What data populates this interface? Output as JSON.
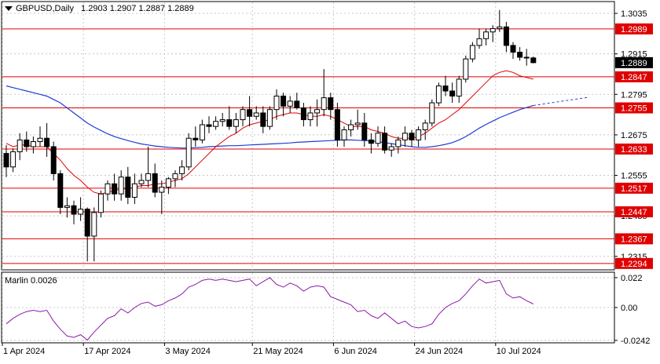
{
  "header": {
    "symbol": "GBPUSD,Daily",
    "ohlc": "1.2903 1.2907 1.2887 1.2889"
  },
  "colors": {
    "background": "#ffffff",
    "frame": "#000000",
    "grid": "#c8c8c8",
    "level_line": "#e00000",
    "level_label_bg": "#e00000",
    "price_label_bg": "#000000",
    "candle_up_body": "#ffffff",
    "candle_down_body": "#000000",
    "ma_fast": "#e00000",
    "ma_slow": "#1f3cd0",
    "oscillator": "#8a1aa6"
  },
  "chart_data": [
    {
      "type": "candlestick",
      "title": "GBPUSD,Daily",
      "price_ticks": [
        "1.3035",
        "1.2915",
        "1.2795",
        "1.2675",
        "1.2555",
        "1.2435",
        "1.2315"
      ],
      "ylim": [
        1.2275,
        1.307
      ],
      "current_price": "1.2889",
      "levels": [
        {
          "label": "1.2989",
          "value": 1.2989
        },
        {
          "label": "1.2847",
          "value": 1.2847
        },
        {
          "label": "1.2755",
          "value": 1.2755
        },
        {
          "label": "1.2633",
          "value": 1.2633
        },
        {
          "label": "1.2517",
          "value": 1.2517
        },
        {
          "label": "1.2447",
          "value": 1.2447
        },
        {
          "label": "1.2367",
          "value": 1.2367
        },
        {
          "label": "1.2294",
          "value": 1.2294
        }
      ],
      "date_ticks": [
        {
          "label": "1 Apr 2024",
          "index": 0
        },
        {
          "label": "17 Apr 2024",
          "index": 12
        },
        {
          "label": "3 May 2024",
          "index": 24
        },
        {
          "label": "21 May 2024",
          "index": 37
        },
        {
          "label": "6 Jun 2024",
          "index": 49
        },
        {
          "label": "24 Jun 2024",
          "index": 61
        },
        {
          "label": "10 Jul 2024",
          "index": 73
        }
      ],
      "ohlc": [
        [
          1.262,
          1.2645,
          1.255,
          1.258
        ],
        [
          1.258,
          1.2635,
          1.2565,
          1.2625
        ],
        [
          1.2625,
          1.268,
          1.26,
          1.266
        ],
        [
          1.266,
          1.2685,
          1.2625,
          1.264
        ],
        [
          1.264,
          1.267,
          1.262,
          1.2655
        ],
        [
          1.2655,
          1.27,
          1.264,
          1.2665
        ],
        [
          1.2665,
          1.271,
          1.261,
          1.264
        ],
        [
          1.264,
          1.2655,
          1.254,
          1.256
        ],
        [
          1.256,
          1.257,
          1.244,
          1.246
        ],
        [
          1.246,
          1.249,
          1.243,
          1.2465
        ],
        [
          1.2465,
          1.248,
          1.241,
          1.244
        ],
        [
          1.244,
          1.249,
          1.242,
          1.2455
        ],
        [
          1.2455,
          1.246,
          1.23,
          1.2375
        ],
        [
          1.2375,
          1.246,
          1.23,
          1.2445
        ],
        [
          1.2445,
          1.251,
          1.243,
          1.25
        ],
        [
          1.25,
          1.254,
          1.248,
          1.253
        ],
        [
          1.253,
          1.256,
          1.248,
          1.25
        ],
        [
          1.25,
          1.257,
          1.248,
          1.255
        ],
        [
          1.255,
          1.258,
          1.247,
          1.249
        ],
        [
          1.249,
          1.256,
          1.247,
          1.253
        ],
        [
          1.253,
          1.256,
          1.252,
          1.254
        ],
        [
          1.254,
          1.264,
          1.252,
          1.256
        ],
        [
          1.256,
          1.259,
          1.249,
          1.2505
        ],
        [
          1.2505,
          1.254,
          1.244,
          1.252
        ],
        [
          1.252,
          1.255,
          1.25,
          1.2545
        ],
        [
          1.2545,
          1.257,
          1.252,
          1.256
        ],
        [
          1.256,
          1.26,
          1.254,
          1.258
        ],
        [
          1.258,
          1.268,
          1.257,
          1.2665
        ],
        [
          1.2665,
          1.27,
          1.264,
          1.266
        ],
        [
          1.266,
          1.272,
          1.265,
          1.2705
        ],
        [
          1.2705,
          1.273,
          1.268,
          1.27
        ],
        [
          1.27,
          1.273,
          1.269,
          1.2715
        ],
        [
          1.2715,
          1.274,
          1.27,
          1.272
        ],
        [
          1.272,
          1.276,
          1.269,
          1.27
        ],
        [
          1.27,
          1.274,
          1.268,
          1.272
        ],
        [
          1.272,
          1.276,
          1.27,
          1.275
        ],
        [
          1.275,
          1.279,
          1.27,
          1.273
        ],
        [
          1.273,
          1.276,
          1.272,
          1.274
        ],
        [
          1.274,
          1.276,
          1.268,
          1.27
        ],
        [
          1.27,
          1.276,
          1.269,
          1.275
        ],
        [
          1.275,
          1.281,
          1.272,
          1.279
        ],
        [
          1.279,
          1.28,
          1.273,
          1.276
        ],
        [
          1.276,
          1.279,
          1.274,
          1.2775
        ],
        [
          1.2775,
          1.28,
          1.275,
          1.2755
        ],
        [
          1.2755,
          1.277,
          1.27,
          1.272
        ],
        [
          1.272,
          1.276,
          1.27,
          1.274
        ],
        [
          1.274,
          1.278,
          1.27,
          1.275
        ],
        [
          1.275,
          1.287,
          1.273,
          1.2785
        ],
        [
          1.2785,
          1.28,
          1.272,
          1.275
        ],
        [
          1.275,
          1.277,
          1.264,
          1.266
        ],
        [
          1.266,
          1.27,
          1.264,
          1.269
        ],
        [
          1.269,
          1.272,
          1.267,
          1.2705
        ],
        [
          1.2705,
          1.275,
          1.269,
          1.271
        ],
        [
          1.271,
          1.274,
          1.264,
          1.266
        ],
        [
          1.266,
          1.268,
          1.262,
          1.265
        ],
        [
          1.265,
          1.27,
          1.264,
          1.268
        ],
        [
          1.268,
          1.27,
          1.262,
          1.263
        ],
        [
          1.263,
          1.265,
          1.261,
          1.264
        ],
        [
          1.264,
          1.267,
          1.262,
          1.266
        ],
        [
          1.266,
          1.27,
          1.264,
          1.268
        ],
        [
          1.268,
          1.269,
          1.264,
          1.266
        ],
        [
          1.266,
          1.27,
          1.264,
          1.269
        ],
        [
          1.269,
          1.272,
          1.266,
          1.271
        ],
        [
          1.271,
          1.278,
          1.27,
          1.277
        ],
        [
          1.277,
          1.283,
          1.276,
          1.282
        ],
        [
          1.282,
          1.285,
          1.279,
          1.2805
        ],
        [
          1.2805,
          1.283,
          1.277,
          1.279
        ],
        [
          1.279,
          1.285,
          1.277,
          1.284
        ],
        [
          1.284,
          1.291,
          1.283,
          1.29
        ],
        [
          1.29,
          1.295,
          1.289,
          1.294
        ],
        [
          1.294,
          1.299,
          1.293,
          1.296
        ],
        [
          1.296,
          1.299,
          1.294,
          1.298
        ],
        [
          1.298,
          1.3,
          1.295,
          1.299
        ],
        [
          1.299,
          1.3045,
          1.298,
          1.2995
        ],
        [
          1.2995,
          1.301,
          1.292,
          1.294
        ],
        [
          1.294,
          1.295,
          1.29,
          1.292
        ],
        [
          1.292,
          1.2935,
          1.2895,
          1.2905
        ],
        [
          1.2905,
          1.293,
          1.288,
          1.2903
        ],
        [
          1.2903,
          1.2907,
          1.2887,
          1.2889
        ]
      ],
      "series": [
        {
          "name": "",
          "values": [
            1.265,
            1.264,
            1.2645,
            1.2645,
            1.264,
            1.264,
            1.264,
            1.262,
            1.26,
            1.2575,
            1.2555,
            1.254,
            1.252,
            1.2505,
            1.25,
            1.2505,
            1.251,
            1.2515,
            1.2515,
            1.252,
            1.2525,
            1.2525,
            1.253,
            1.253,
            1.2535,
            1.254,
            1.2545,
            1.256,
            1.258,
            1.26,
            1.262,
            1.264,
            1.2655,
            1.267,
            1.268,
            1.2695,
            1.2705,
            1.271,
            1.2715,
            1.272,
            1.273,
            1.2735,
            1.274,
            1.274,
            1.2735,
            1.273,
            1.273,
            1.2735,
            1.273,
            1.272,
            1.271,
            1.27,
            1.27,
            1.27,
            1.269,
            1.2685,
            1.268,
            1.267,
            1.2665,
            1.2665,
            1.2665,
            1.267,
            1.268,
            1.2695,
            1.271,
            1.272,
            1.2735,
            1.275,
            1.277,
            1.279,
            1.281,
            1.283,
            1.285,
            1.286,
            1.2865,
            1.286,
            1.285,
            1.2845,
            1.284
          ]
        },
        {
          "name": "",
          "values": [
            1.282,
            1.2815,
            1.281,
            1.2805,
            1.28,
            1.2795,
            1.279,
            1.278,
            1.277,
            1.2755,
            1.274,
            1.2725,
            1.271,
            1.2698,
            1.2688,
            1.2678,
            1.267,
            1.2664,
            1.2658,
            1.2653,
            1.2648,
            1.2645,
            1.2642,
            1.264,
            1.2638,
            1.2637,
            1.2636,
            1.2636,
            1.2637,
            1.2638,
            1.264,
            1.2641,
            1.2642,
            1.2643,
            1.2643,
            1.2644,
            1.2645,
            1.2646,
            1.2647,
            1.2648,
            1.2649,
            1.265,
            1.2651,
            1.2653,
            1.2654,
            1.2655,
            1.2656,
            1.2657,
            1.2658,
            1.2659,
            1.266,
            1.266,
            1.2659,
            1.2658,
            1.2657,
            1.2655,
            1.2652,
            1.2649,
            1.2646,
            1.2643,
            1.264,
            1.2638,
            1.2638,
            1.264,
            1.2643,
            1.2647,
            1.2652,
            1.266,
            1.267,
            1.2682,
            1.2695,
            1.2706,
            1.2716,
            1.2726,
            1.2734,
            1.2742,
            1.275,
            1.2756,
            1.2762
          ]
        },
        {
          "name": "Marlin",
          "values": [
            -0.012,
            -0.008,
            -0.005,
            -0.003,
            -0.002,
            -0.003,
            -0.002,
            -0.01,
            -0.016,
            -0.021,
            -0.022,
            -0.02,
            -0.024,
            -0.018,
            -0.013,
            -0.008,
            -0.006,
            -0.001,
            -0.004,
            0.0,
            0.003,
            0.004,
            0.001,
            0.002,
            0.005,
            0.007,
            0.01,
            0.015,
            0.017,
            0.02,
            0.021,
            0.02,
            0.021,
            0.02,
            0.019,
            0.02,
            0.021,
            0.016,
            0.019,
            0.022,
            0.017,
            0.015,
            0.018,
            0.016,
            0.012,
            0.015,
            0.016,
            0.015,
            0.008,
            0.006,
            0.004,
            0.002,
            -0.003,
            -0.002,
            -0.006,
            -0.008,
            -0.004,
            -0.008,
            -0.012,
            -0.01,
            -0.014,
            -0.015,
            -0.014,
            -0.012,
            -0.005,
            0.0,
            0.003,
            0.005,
            0.01,
            0.016,
            0.021,
            0.018,
            0.019,
            0.02,
            0.01,
            0.007,
            0.008,
            0.005,
            0.0026
          ]
        }
      ],
      "ma_slow_projection": [
        1.2765,
        1.2768,
        1.2771,
        1.2774,
        1.2777,
        1.278,
        1.2783,
        1.2786
      ],
      "oscillator": {
        "label": "Marlin 0.0026",
        "ticks": [
          "0.022",
          "0.00",
          "-0.0242"
        ],
        "ylim": [
          -0.026,
          0.026
        ]
      }
    }
  ]
}
